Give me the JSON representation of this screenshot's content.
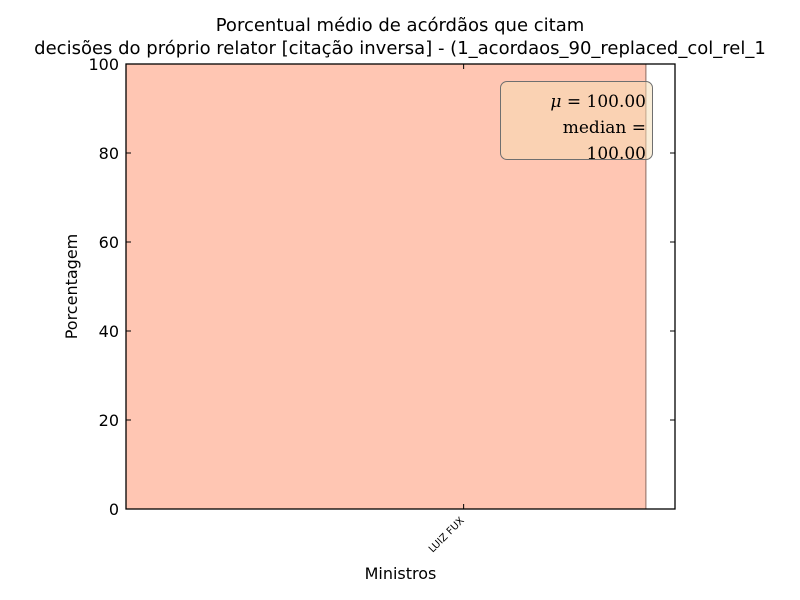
{
  "chart_data": {
    "type": "bar",
    "title": "Porcentual médio de acórdãos que citam",
    "subtitle": "decisões do próprio relator [citação inversa] - (1_acordaos_90_replaced_col_rel_1",
    "xlabel": "Ministros",
    "ylabel": "Porcentagem",
    "categories": [
      "LUIZ FUX"
    ],
    "values": [
      100.0
    ],
    "ylim": [
      0,
      100
    ],
    "yticks": [
      "0",
      "20",
      "40",
      "60",
      "80",
      "100"
    ],
    "grid": false,
    "bar_color": "#ffc6b3",
    "stats": {
      "mu_symbol": "μ",
      "mean_label": "100.00",
      "median_name": "median",
      "median_label": "100.00"
    }
  }
}
